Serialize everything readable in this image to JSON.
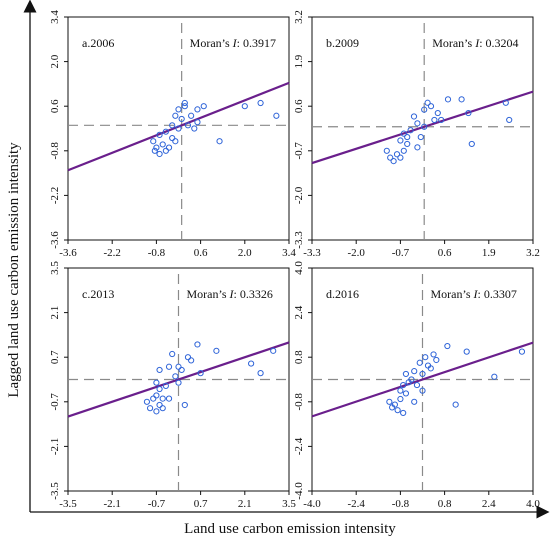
{
  "figure": {
    "xlabel": "Land use carbon emission intensity",
    "ylabel": "Lagged land use carbon emission intensity"
  },
  "colors": {
    "point": "#2f64d8",
    "regression": "#6a1f8c",
    "reference": "#8a8a8a"
  },
  "chart_data": [
    {
      "type": "scatter",
      "label": "a.2006",
      "moran_prefix": "Moran’s ",
      "moran_symbol": "I",
      "moran_value": ": 0.3917",
      "xlim": [
        -3.6,
        3.4
      ],
      "ylim": [
        -3.6,
        3.4
      ],
      "xticks": [
        "-3.6",
        "-2.2",
        "-0.8",
        "0.6",
        "2.0",
        "3.4"
      ],
      "yticks": [
        "-3.6",
        "-2.2",
        "-0.8",
        "0.6",
        "2.0",
        "3.4"
      ],
      "regression": {
        "slope": 0.3917,
        "intercept": 0.0
      },
      "points": [
        [
          -0.9,
          -0.5
        ],
        [
          -0.8,
          -0.7
        ],
        [
          -0.7,
          -0.9
        ],
        [
          -0.6,
          -0.6
        ],
        [
          -0.5,
          -0.8
        ],
        [
          -0.4,
          -0.7
        ],
        [
          -0.7,
          -0.3
        ],
        [
          -0.5,
          -0.2
        ],
        [
          -0.3,
          -0.4
        ],
        [
          -0.2,
          -0.5
        ],
        [
          -0.3,
          0.0
        ],
        [
          -0.1,
          -0.1
        ],
        [
          0.0,
          0.2
        ],
        [
          -0.2,
          0.3
        ],
        [
          0.1,
          0.6
        ],
        [
          0.1,
          0.7
        ],
        [
          0.2,
          0.0
        ],
        [
          0.3,
          0.3
        ],
        [
          0.5,
          0.1
        ],
        [
          0.5,
          0.5
        ],
        [
          0.7,
          0.6
        ],
        [
          0.4,
          -0.1
        ],
        [
          1.2,
          -0.5
        ],
        [
          2.0,
          0.6
        ],
        [
          2.5,
          0.7
        ],
        [
          3.0,
          0.3
        ],
        [
          -0.85,
          -0.8
        ],
        [
          -0.1,
          0.5
        ]
      ]
    },
    {
      "type": "scatter",
      "label": "b.2009",
      "moran_prefix": "Moran’s ",
      "moran_symbol": "I",
      "moran_value": ": 0.3204",
      "xlim": [
        -3.3,
        3.2
      ],
      "ylim": [
        -3.3,
        3.2
      ],
      "xticks": [
        "-3.3",
        "-2.0",
        "-0.7",
        "0.6",
        "1.9",
        "3.2"
      ],
      "yticks": [
        "-3.3",
        "-2.0",
        "-0.7",
        "0.6",
        "1.9",
        "3.2"
      ],
      "regression": {
        "slope": 0.3204,
        "intercept": 0.0
      },
      "points": [
        [
          -1.1,
          -0.7
        ],
        [
          -1.0,
          -0.9
        ],
        [
          -0.9,
          -1.0
        ],
        [
          -0.8,
          -0.8
        ],
        [
          -0.7,
          -0.9
        ],
        [
          -0.6,
          -0.7
        ],
        [
          -0.7,
          -0.4
        ],
        [
          -0.6,
          -0.2
        ],
        [
          -0.5,
          -0.5
        ],
        [
          -0.4,
          -0.1
        ],
        [
          -0.3,
          0.3
        ],
        [
          -0.2,
          0.1
        ],
        [
          -0.1,
          -0.3
        ],
        [
          0.0,
          0.0
        ],
        [
          0.0,
          0.5
        ],
        [
          0.1,
          0.7
        ],
        [
          0.2,
          0.6
        ],
        [
          0.3,
          0.2
        ],
        [
          0.4,
          0.4
        ],
        [
          0.5,
          0.2
        ],
        [
          0.7,
          0.8
        ],
        [
          1.1,
          0.8
        ],
        [
          1.3,
          0.4
        ],
        [
          1.4,
          -0.5
        ],
        [
          2.4,
          0.7
        ],
        [
          2.5,
          0.2
        ],
        [
          -0.5,
          -0.3
        ],
        [
          -0.2,
          -0.6
        ]
      ]
    },
    {
      "type": "scatter",
      "label": "c.2013",
      "moran_prefix": "Moran’s ",
      "moran_symbol": "I",
      "moran_value": ": 0.3326",
      "xlim": [
        -3.5,
        3.5
      ],
      "ylim": [
        -3.5,
        3.5
      ],
      "xticks": [
        "-3.5",
        "-2.1",
        "-0.7",
        "0.7",
        "2.1",
        "3.5"
      ],
      "yticks": [
        "-3.5",
        "-2.1",
        "-0.7",
        "0.7",
        "2.1",
        "3.5"
      ],
      "regression": {
        "slope": 0.3326,
        "intercept": 0.0
      },
      "points": [
        [
          -1.0,
          -0.7
        ],
        [
          -0.9,
          -0.9
        ],
        [
          -0.8,
          -0.6
        ],
        [
          -0.7,
          -1.0
        ],
        [
          -0.6,
          -0.8
        ],
        [
          -0.7,
          -0.5
        ],
        [
          -0.6,
          -0.3
        ],
        [
          -0.5,
          -0.6
        ],
        [
          -0.7,
          -0.1
        ],
        [
          -0.6,
          0.3
        ],
        [
          -0.4,
          -0.2
        ],
        [
          -0.3,
          0.4
        ],
        [
          -0.2,
          0.8
        ],
        [
          -0.1,
          0.1
        ],
        [
          0.0,
          -0.1
        ],
        [
          0.0,
          0.4
        ],
        [
          0.1,
          0.3
        ],
        [
          0.2,
          -0.8
        ],
        [
          0.3,
          0.7
        ],
        [
          0.4,
          0.6
        ],
        [
          0.6,
          1.1
        ],
        [
          0.7,
          0.2
        ],
        [
          1.2,
          0.9
        ],
        [
          2.3,
          0.5
        ],
        [
          2.6,
          0.2
        ],
        [
          3.0,
          0.9
        ],
        [
          -0.5,
          -0.9
        ],
        [
          -0.3,
          -0.6
        ]
      ]
    },
    {
      "type": "scatter",
      "label": "d.2016",
      "moran_prefix": "Moran’s ",
      "moran_symbol": "I",
      "moran_value": ": 0.3307",
      "xlim": [
        -4.0,
        4.0
      ],
      "ylim": [
        -4.0,
        4.0
      ],
      "xticks": [
        "-4.0",
        "-2.4",
        "-0.8",
        "0.8",
        "2.4",
        "4.0"
      ],
      "yticks": [
        "-4.0",
        "-2.4",
        "-0.8",
        "0.8",
        "2.4",
        "4.0"
      ],
      "regression": {
        "slope": 0.3307,
        "intercept": 0.0
      },
      "points": [
        [
          -1.2,
          -0.8
        ],
        [
          -1.1,
          -1.0
        ],
        [
          -1.0,
          -0.9
        ],
        [
          -0.9,
          -1.1
        ],
        [
          -0.8,
          -0.7
        ],
        [
          -0.7,
          -1.2
        ],
        [
          -0.8,
          -0.4
        ],
        [
          -0.7,
          -0.2
        ],
        [
          -0.6,
          -0.5
        ],
        [
          -0.5,
          -0.1
        ],
        [
          -0.4,
          0.0
        ],
        [
          -0.6,
          0.2
        ],
        [
          -0.3,
          0.3
        ],
        [
          -0.2,
          -0.2
        ],
        [
          -0.1,
          0.6
        ],
        [
          0.0,
          0.2
        ],
        [
          0.1,
          0.8
        ],
        [
          0.2,
          0.5
        ],
        [
          0.3,
          0.4
        ],
        [
          0.4,
          0.9
        ],
        [
          0.5,
          0.7
        ],
        [
          0.9,
          1.2
        ],
        [
          1.2,
          -0.9
        ],
        [
          1.6,
          1.0
        ],
        [
          2.6,
          0.1
        ],
        [
          3.6,
          1.0
        ],
        [
          -0.3,
          -0.8
        ],
        [
          0.0,
          -0.4
        ]
      ]
    }
  ]
}
